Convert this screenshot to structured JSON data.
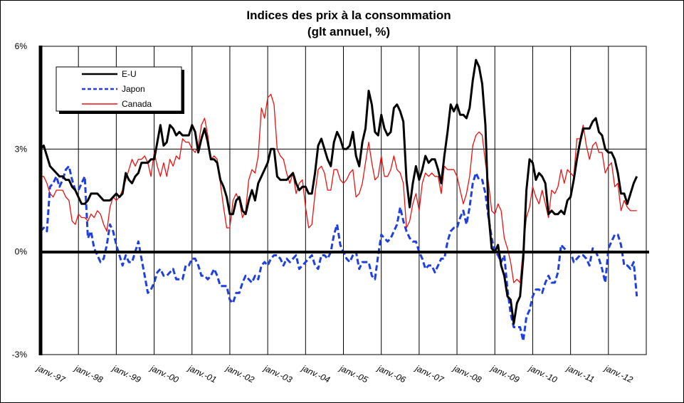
{
  "chart_data": {
    "type": "line",
    "title": "Indices des prix à la consommation",
    "subtitle": "(glt annuel, %)",
    "xlabel": "",
    "ylabel": "",
    "ylim": [
      -3,
      6
    ],
    "y_ticks": [
      {
        "value": 6,
        "label": "6%"
      },
      {
        "value": 3,
        "label": "3%"
      },
      {
        "value": 0,
        "label": "0%"
      },
      {
        "value": -3,
        "label": "-3%"
      }
    ],
    "x_tick_labels": [
      "janv.-97",
      "janv.-98",
      "janv.-99",
      "janv.-00",
      "janv.-01",
      "janv.-02",
      "janv.-03",
      "janv.-04",
      "janv.-05",
      "janv.-06",
      "janv.-07",
      "janv.-08",
      "janv.-09",
      "janv.-10",
      "janv.-11",
      "janv.-12"
    ],
    "x_start_year": 1997,
    "frequency": "monthly",
    "grid": "vertical per year, horizontal at 3%",
    "legend_position": "top-left",
    "series": [
      {
        "name": "E-U",
        "color": "#000000",
        "style": "solid",
        "values": {
          "1997": [
            3.0,
            3.1,
            2.8,
            2.5,
            2.4,
            2.3,
            2.2,
            2.2,
            2.1,
            2.1,
            1.9,
            1.8
          ],
          "1998": [
            1.6,
            1.4,
            1.4,
            1.5,
            1.7,
            1.7,
            1.7,
            1.6,
            1.5,
            1.5,
            1.5,
            1.6
          ],
          "1999": [
            1.7,
            1.6,
            1.7,
            2.3,
            2.1,
            2.0,
            2.2,
            2.3,
            2.6,
            2.6,
            2.6,
            2.7
          ],
          "2000": [
            2.7,
            3.2,
            3.7,
            3.1,
            3.2,
            3.7,
            3.6,
            3.4,
            3.5,
            3.4,
            3.4,
            3.4
          ],
          "2001": [
            3.7,
            3.5,
            2.9,
            3.3,
            3.6,
            3.2,
            2.7,
            2.7,
            2.6,
            2.1,
            1.9,
            1.6
          ],
          "2002": [
            1.1,
            1.1,
            1.5,
            1.6,
            1.2,
            1.1,
            1.5,
            1.8,
            1.5,
            2.0,
            2.2,
            2.4
          ],
          "2003": [
            2.6,
            3.0,
            3.0,
            2.2,
            2.1,
            2.1,
            2.1,
            2.2,
            2.3,
            2.0,
            1.8,
            1.9
          ],
          "2004": [
            1.9,
            1.7,
            1.7,
            2.3,
            3.1,
            3.3,
            3.0,
            2.7,
            2.5,
            3.2,
            3.5,
            3.3
          ],
          "2005": [
            3.0,
            3.0,
            3.1,
            3.5,
            2.8,
            2.5,
            3.2,
            3.6,
            4.7,
            4.3,
            3.5,
            3.4
          ],
          "2006": [
            4.0,
            3.6,
            3.4,
            3.5,
            4.2,
            4.3,
            4.1,
            3.8,
            2.1,
            1.3,
            2.0,
            2.5
          ],
          "2007": [
            2.1,
            2.4,
            2.8,
            2.6,
            2.7,
            2.7,
            2.4,
            2.0,
            2.8,
            3.5,
            4.3,
            4.1
          ],
          "2008": [
            4.3,
            4.0,
            4.0,
            3.9,
            4.2,
            5.0,
            5.6,
            5.4,
            4.9,
            3.7,
            1.1,
            0.1
          ],
          "2009": [
            0.0,
            0.2,
            -0.4,
            -0.7,
            -1.3,
            -1.4,
            -2.1,
            -1.5,
            -1.3,
            -0.2,
            1.8,
            2.7
          ],
          "2010": [
            2.6,
            2.1,
            2.3,
            2.2,
            2.0,
            1.1,
            1.2,
            1.1,
            1.1,
            1.2,
            1.1,
            1.5
          ],
          "2011": [
            1.6,
            2.1,
            2.7,
            3.2,
            3.6,
            3.6,
            3.6,
            3.8,
            3.9,
            3.5,
            3.4,
            3.0
          ],
          "2012": [
            2.9,
            2.9,
            2.7,
            2.3,
            1.7,
            1.7,
            1.4,
            1.7,
            2.0,
            2.2
          ]
        }
      },
      {
        "name": "Japon",
        "color": "#1f3fe0",
        "style": "dashed",
        "values": {
          "1997": [
            0.6,
            0.7,
            0.6,
            1.9,
            2.0,
            2.2,
            1.9,
            2.1,
            2.4,
            2.5,
            2.1,
            1.8
          ],
          "1998": [
            1.8,
            2.0,
            2.2,
            0.4,
            0.6,
            0.1,
            -0.1,
            -0.3,
            -0.2,
            0.2,
            0.8,
            0.6
          ],
          "1999": [
            0.2,
            -0.1,
            -0.4,
            -0.1,
            -0.3,
            -0.3,
            0.0,
            0.3,
            -0.2,
            -0.7,
            -1.2,
            -1.1
          ],
          "2000": [
            -0.9,
            -0.6,
            -0.5,
            -0.7,
            -0.7,
            -0.6,
            -0.5,
            -0.8,
            -0.8,
            -0.8,
            -0.4,
            -0.4
          ],
          "2001": [
            -0.2,
            -0.2,
            -0.4,
            -0.7,
            -0.7,
            -0.8,
            -0.7,
            -0.5,
            -0.7,
            -1.0,
            -1.0,
            -1.0
          ],
          "2002": [
            -1.4,
            -1.5,
            -1.2,
            -1.2,
            -0.9,
            -0.7,
            -0.8,
            -0.9,
            -0.7,
            -0.8,
            -0.4,
            -0.3
          ],
          "2003": [
            -0.4,
            -0.2,
            -0.1,
            -0.1,
            -0.2,
            -0.4,
            -0.2,
            -0.3,
            -0.2,
            -0.1,
            -0.5,
            -0.4
          ],
          "2004": [
            -0.3,
            -0.2,
            -0.1,
            -0.4,
            -0.5,
            -0.1,
            -0.1,
            -0.2,
            0.0,
            0.5,
            0.8,
            0.2
          ],
          "2005": [
            0.0,
            -0.2,
            -0.3,
            -0.1,
            0.0,
            -0.5,
            -0.3,
            -0.3,
            -0.3,
            -0.7,
            -0.8,
            -0.1
          ],
          "2006": [
            0.5,
            0.4,
            0.3,
            0.4,
            0.6,
            0.8,
            1.3,
            0.9,
            0.6,
            0.4,
            0.3,
            0.3
          ],
          "2007": [
            0.0,
            -0.2,
            -0.5,
            -0.4,
            -0.4,
            -0.6,
            -0.4,
            -0.2,
            -0.2,
            0.3,
            0.6,
            0.7
          ],
          "2008": [
            0.7,
            1.0,
            1.2,
            0.8,
            1.3,
            2.0,
            2.3,
            2.1,
            2.1,
            1.7,
            1.0,
            0.4
          ],
          "2009": [
            0.0,
            -0.1,
            -0.3,
            -0.1,
            -1.1,
            -1.8,
            -2.2,
            -2.2,
            -2.2,
            -2.6,
            -1.9,
            -1.7
          ],
          "2010": [
            -1.3,
            -1.1,
            -1.1,
            -1.2,
            -0.9,
            -0.7,
            -0.9,
            -0.9,
            -0.6,
            0.2,
            0.1,
            0.0
          ],
          "2011": [
            0.0,
            -0.3,
            -0.2,
            -0.1,
            -0.1,
            -0.2,
            -0.4,
            0.1,
            0.0,
            -0.2,
            -0.5,
            -0.9
          ],
          "2012": [
            0.1,
            0.3,
            0.5,
            0.5,
            0.2,
            -0.4,
            -0.4,
            -0.5,
            -0.3,
            -1.3
          ]
        }
      },
      {
        "name": "Canada",
        "color": "#ee1111",
        "style": "solid",
        "values": {
          "1997": [
            2.2,
            2.2,
            2.0,
            1.7,
            1.6,
            1.8,
            1.8,
            1.8,
            1.6,
            1.5,
            0.9,
            0.8
          ],
          "1998": [
            1.1,
            1.0,
            1.0,
            0.9,
            1.1,
            1.0,
            1.2,
            1.1,
            0.8,
            0.6,
            1.3,
            1.6
          ],
          "1999": [
            1.5,
            1.6,
            1.8,
            2.1,
            2.4,
            2.7,
            2.5,
            2.7,
            2.7,
            2.8,
            2.6,
            2.2
          ],
          "2000": [
            2.9,
            2.5,
            2.2,
            2.6,
            2.2,
            2.7,
            2.5,
            2.8,
            2.7,
            3.3,
            3.2,
            3.2
          ],
          "2001": [
            3.0,
            2.9,
            3.1,
            3.7,
            3.9,
            3.4,
            2.7,
            2.8,
            2.7,
            2.0,
            1.3,
            0.7
          ],
          "2002": [
            0.7,
            1.5,
            1.7,
            1.5,
            1.0,
            1.2,
            2.1,
            2.4,
            2.3,
            2.8,
            4.2,
            3.9
          ],
          "2003": [
            4.5,
            4.6,
            4.3,
            3.0,
            2.8,
            2.7,
            2.3,
            2.0,
            2.3,
            1.7,
            2.0,
            2.1
          ],
          "2004": [
            1.3,
            0.7,
            0.8,
            1.7,
            2.4,
            2.5,
            2.3,
            1.8,
            1.8,
            2.4,
            2.4,
            2.1
          ],
          "2005": [
            2.0,
            2.1,
            2.3,
            2.4,
            1.6,
            1.7,
            2.0,
            2.6,
            3.2,
            2.6,
            2.1,
            2.2
          ],
          "2006": [
            2.8,
            2.2,
            2.2,
            2.4,
            2.8,
            2.4,
            2.3,
            2.0,
            0.7,
            0.9,
            1.4,
            1.7
          ],
          "2007": [
            1.2,
            2.0,
            2.3,
            2.2,
            2.3,
            2.2,
            2.2,
            1.7,
            2.5,
            2.4,
            2.4,
            2.4
          ],
          "2008": [
            2.2,
            1.8,
            1.4,
            1.7,
            2.2,
            3.1,
            3.4,
            3.5,
            3.4,
            2.6,
            2.0,
            1.2
          ],
          "2009": [
            1.1,
            1.4,
            1.2,
            0.4,
            0.1,
            -0.3,
            -0.9,
            -0.8,
            -0.9,
            0.1,
            1.0,
            1.3
          ],
          "2010": [
            1.9,
            1.6,
            1.4,
            1.8,
            1.4,
            1.0,
            1.8,
            1.7,
            1.9,
            2.4,
            2.0,
            2.4
          ],
          "2011": [
            2.3,
            2.2,
            3.3,
            3.3,
            3.7,
            3.1,
            2.7,
            3.1,
            3.2,
            2.9,
            2.9,
            2.3
          ],
          "2012": [
            2.5,
            2.6,
            1.9,
            2.0,
            1.2,
            1.5,
            1.3,
            1.2,
            1.2,
            1.2
          ]
        }
      }
    ]
  }
}
